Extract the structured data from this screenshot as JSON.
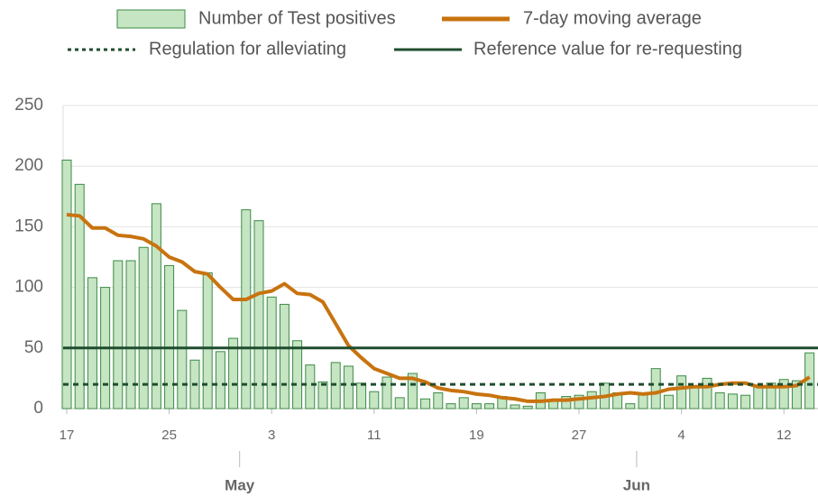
{
  "chart_data": {
    "type": "bar",
    "categories": [
      "17",
      null,
      null,
      null,
      null,
      null,
      null,
      null,
      "25",
      null,
      null,
      null,
      null,
      null,
      null,
      null,
      "3",
      null,
      null,
      null,
      null,
      null,
      null,
      null,
      "11",
      null,
      null,
      null,
      null,
      null,
      null,
      null,
      "19",
      null,
      null,
      null,
      null,
      null,
      null,
      null,
      "27",
      null,
      null,
      null,
      null,
      null,
      null,
      null,
      "4",
      null,
      null,
      null,
      null,
      null,
      null,
      null,
      "12",
      null,
      null
    ],
    "month_labels": [
      {
        "value": 14,
        "label": "May"
      },
      {
        "value": 45,
        "label": "Jun"
      }
    ],
    "series": [
      {
        "name": "Number of Test positives",
        "color": "#c5e5c3",
        "edge_color": "#3d8a45",
        "values": [
          205,
          185,
          108,
          100,
          122,
          122,
          133,
          169,
          118,
          81,
          40,
          112,
          47,
          58,
          164,
          155,
          92,
          86,
          56,
          36,
          22,
          38,
          35,
          21,
          14,
          26,
          9,
          29,
          8,
          13,
          4,
          9,
          4,
          4,
          10,
          3,
          2,
          13,
          7,
          10,
          11,
          14,
          21,
          13,
          4,
          12,
          33,
          11,
          27,
          19,
          25,
          13,
          12,
          11,
          18,
          21,
          24,
          23,
          46
        ]
      },
      {
        "name": "7-day moving average",
        "type": "line",
        "color": "#c8730f",
        "values": [
          160,
          159,
          149,
          149,
          143,
          142,
          140,
          134,
          125,
          121,
          113,
          111,
          100,
          90,
          90,
          95,
          97,
          103,
          95,
          94,
          88,
          70,
          52,
          42,
          33,
          29,
          25,
          25,
          22,
          17,
          15,
          14,
          12,
          11,
          9,
          8,
          6,
          6,
          7,
          7,
          8,
          9,
          10,
          12,
          13,
          12,
          13,
          16,
          17,
          18,
          18,
          20,
          21,
          21,
          18,
          18,
          18,
          19,
          26
        ]
      },
      {
        "name": "Regulation for alleviating",
        "type": "hline",
        "style": "dotted",
        "color": "#1f4d2e",
        "value": 20
      },
      {
        "name": "Reference value for re-requesting",
        "type": "hline",
        "style": "solid",
        "color": "#1f4d2e",
        "value": 50
      }
    ],
    "ylim": [
      0,
      250
    ],
    "yticks": [
      0,
      50,
      100,
      150,
      200,
      250
    ],
    "grid": true
  }
}
